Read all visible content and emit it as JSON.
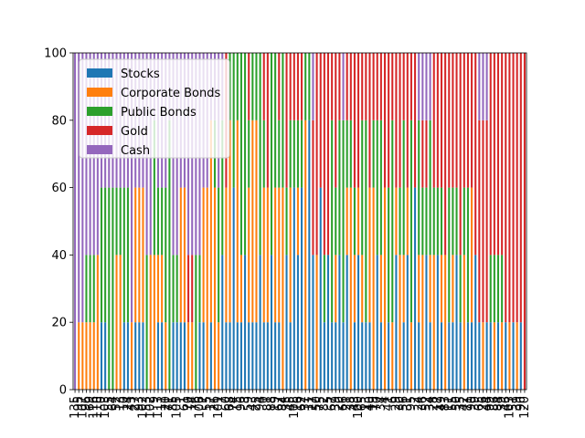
{
  "chart_data": {
    "type": "bar",
    "stacked": true,
    "title": "",
    "xlabel": "",
    "ylabel": "",
    "ylim": [
      0,
      100
    ],
    "yticks": [
      0,
      20,
      40,
      60,
      80,
      100
    ],
    "legend_position": "top-left",
    "grid": false,
    "n_categories": 120,
    "series": [
      {
        "name": "Stocks",
        "color": "#1f77b4"
      },
      {
        "name": "Corporate Bonds",
        "color": "#ff7f0e"
      },
      {
        "name": "Public Bonds",
        "color": "#2ca02c"
      },
      {
        "name": "Gold",
        "color": "#d62728"
      },
      {
        "name": "Cash",
        "color": "#9467bd"
      }
    ],
    "allocations": [
      [
        0,
        0,
        0,
        0,
        100
      ],
      [
        0,
        20,
        0,
        0,
        80
      ],
      [
        0,
        20,
        0,
        0,
        80
      ],
      [
        0,
        20,
        20,
        0,
        60
      ],
      [
        0,
        20,
        20,
        0,
        60
      ],
      [
        0,
        20,
        20,
        0,
        60
      ],
      [
        0,
        40,
        0,
        0,
        60
      ],
      [
        20,
        0,
        40,
        0,
        40
      ],
      [
        20,
        0,
        40,
        0,
        40
      ],
      [
        0,
        0,
        60,
        0,
        40
      ],
      [
        0,
        0,
        60,
        0,
        40
      ],
      [
        0,
        40,
        20,
        0,
        40
      ],
      [
        0,
        40,
        20,
        0,
        40
      ],
      [
        20,
        0,
        40,
        0,
        40
      ],
      [
        20,
        0,
        40,
        0,
        40
      ],
      [
        0,
        20,
        0,
        0,
        80
      ],
      [
        20,
        40,
        0,
        0,
        40
      ],
      [
        20,
        40,
        0,
        0,
        40
      ],
      [
        20,
        40,
        0,
        0,
        40
      ],
      [
        0,
        0,
        40,
        0,
        60
      ],
      [
        0,
        40,
        0,
        0,
        60
      ],
      [
        0,
        40,
        40,
        0,
        20
      ],
      [
        20,
        20,
        20,
        0,
        40
      ],
      [
        20,
        20,
        20,
        0,
        40
      ],
      [
        0,
        20,
        40,
        0,
        40
      ],
      [
        0,
        0,
        80,
        0,
        20
      ],
      [
        20,
        0,
        20,
        0,
        60
      ],
      [
        20,
        0,
        20,
        0,
        60
      ],
      [
        20,
        40,
        0,
        0,
        40
      ],
      [
        20,
        40,
        0,
        0,
        40
      ],
      [
        0,
        20,
        0,
        20,
        60
      ],
      [
        0,
        20,
        0,
        20,
        60
      ],
      [
        0,
        0,
        40,
        0,
        60
      ],
      [
        20,
        0,
        20,
        0,
        60
      ],
      [
        20,
        40,
        0,
        0,
        40
      ],
      [
        0,
        60,
        0,
        0,
        40
      ],
      [
        20,
        60,
        0,
        0,
        20
      ],
      [
        0,
        60,
        20,
        0,
        20
      ],
      [
        0,
        20,
        40,
        0,
        40
      ],
      [
        40,
        0,
        40,
        0,
        20
      ],
      [
        20,
        40,
        0,
        40,
        0
      ],
      [
        20,
        60,
        20,
        0,
        0
      ],
      [
        60,
        0,
        40,
        0,
        0
      ],
      [
        20,
        60,
        20,
        0,
        0
      ],
      [
        20,
        20,
        60,
        0,
        0
      ],
      [
        40,
        0,
        60,
        0,
        0
      ],
      [
        20,
        40,
        20,
        20,
        0
      ],
      [
        20,
        60,
        20,
        0,
        0
      ],
      [
        20,
        60,
        20,
        0,
        0
      ],
      [
        40,
        0,
        60,
        0,
        0
      ],
      [
        20,
        40,
        20,
        20,
        0
      ],
      [
        20,
        40,
        0,
        40,
        0
      ],
      [
        40,
        0,
        60,
        0,
        0
      ],
      [
        20,
        40,
        40,
        0,
        0
      ],
      [
        20,
        40,
        20,
        20,
        0
      ],
      [
        0,
        60,
        40,
        0,
        0
      ],
      [
        40,
        0,
        20,
        40,
        0
      ],
      [
        20,
        40,
        20,
        20,
        0
      ],
      [
        60,
        0,
        20,
        20,
        0
      ],
      [
        40,
        20,
        20,
        20,
        0
      ],
      [
        60,
        0,
        20,
        20,
        0
      ],
      [
        0,
        80,
        20,
        0,
        0
      ],
      [
        80,
        0,
        20,
        0,
        0
      ],
      [
        40,
        0,
        0,
        40,
        20
      ],
      [
        0,
        40,
        0,
        60,
        0
      ],
      [
        60,
        0,
        0,
        40,
        0
      ],
      [
        20,
        0,
        20,
        60,
        0
      ],
      [
        40,
        0,
        0,
        60,
        0
      ],
      [
        20,
        0,
        60,
        20,
        0
      ],
      [
        20,
        20,
        20,
        40,
        0
      ],
      [
        40,
        0,
        40,
        20,
        0
      ],
      [
        20,
        0,
        60,
        0,
        20
      ],
      [
        40,
        20,
        20,
        20,
        0
      ],
      [
        0,
        60,
        20,
        20,
        0
      ],
      [
        20,
        20,
        20,
        40,
        0
      ],
      [
        40,
        20,
        0,
        40,
        0
      ],
      [
        20,
        20,
        40,
        20,
        0
      ],
      [
        20,
        0,
        60,
        20,
        0
      ],
      [
        20,
        40,
        0,
        40,
        0
      ],
      [
        0,
        60,
        20,
        20,
        0
      ],
      [
        40,
        0,
        40,
        20,
        0
      ],
      [
        20,
        20,
        40,
        20,
        0
      ],
      [
        0,
        60,
        0,
        40,
        0
      ],
      [
        20,
        0,
        40,
        40,
        0
      ],
      [
        0,
        20,
        60,
        20,
        0
      ],
      [
        40,
        20,
        0,
        40,
        0
      ],
      [
        0,
        40,
        20,
        40,
        0
      ],
      [
        20,
        20,
        40,
        20,
        0
      ],
      [
        40,
        20,
        0,
        40,
        0
      ],
      [
        0,
        20,
        60,
        20,
        0
      ],
      [
        60,
        0,
        0,
        40,
        0
      ],
      [
        20,
        20,
        40,
        0,
        20
      ],
      [
        0,
        40,
        20,
        20,
        20
      ],
      [
        40,
        0,
        20,
        20,
        20
      ],
      [
        20,
        20,
        40,
        0,
        20
      ],
      [
        0,
        40,
        20,
        40,
        0
      ],
      [
        40,
        0,
        20,
        40,
        0
      ],
      [
        20,
        20,
        20,
        40,
        0
      ],
      [
        0,
        40,
        0,
        60,
        0
      ],
      [
        20,
        0,
        40,
        40,
        0
      ],
      [
        20,
        20,
        20,
        40,
        0
      ],
      [
        40,
        0,
        20,
        40,
        0
      ],
      [
        20,
        0,
        20,
        60,
        0
      ],
      [
        0,
        40,
        20,
        40,
        0
      ],
      [
        20,
        0,
        40,
        40,
        0
      ],
      [
        20,
        40,
        0,
        40,
        0
      ],
      [
        40,
        0,
        0,
        60,
        0
      ],
      [
        20,
        0,
        0,
        60,
        20
      ],
      [
        0,
        20,
        0,
        60,
        20
      ],
      [
        20,
        0,
        0,
        60,
        20
      ],
      [
        20,
        0,
        20,
        60,
        0
      ],
      [
        0,
        20,
        20,
        60,
        0
      ],
      [
        20,
        0,
        20,
        60,
        0
      ],
      [
        0,
        20,
        20,
        60,
        0
      ],
      [
        20,
        0,
        0,
        80,
        0
      ],
      [
        0,
        20,
        0,
        80,
        0
      ],
      [
        20,
        0,
        0,
        80,
        0
      ],
      [
        0,
        20,
        0,
        80,
        0
      ],
      [
        20,
        0,
        0,
        80,
        0
      ],
      [
        0,
        0,
        0,
        100,
        0
      ]
    ],
    "xtick_labels": [
      "135",
      "95",
      "107",
      "96",
      "69",
      "116",
      "110",
      "0",
      "103",
      "55",
      "64",
      "52",
      "13",
      "10",
      "24",
      "43",
      "27",
      "93",
      "102",
      "53",
      "102",
      "9",
      "113",
      "11",
      "20",
      "71",
      "85",
      "105",
      "1",
      "61",
      "70",
      "14",
      "76",
      "106",
      "7",
      "55",
      "17",
      "26",
      "101",
      "7",
      "60",
      "68",
      "74",
      "15",
      "96",
      "3",
      "59",
      "43",
      "25",
      "94",
      "0",
      "81",
      "88",
      "19",
      "67",
      "84",
      "35",
      "45",
      "108",
      "16",
      "62",
      "37",
      "11",
      "27",
      "50",
      "75",
      "82",
      "5",
      "67",
      "39",
      "20",
      "66",
      "21",
      "38",
      "43",
      "100",
      "65",
      "13",
      "40",
      "19",
      "70",
      "34",
      "4",
      "41",
      "6",
      "29",
      "30",
      "56",
      "31",
      "95",
      "2",
      "24",
      "36",
      "52",
      "34",
      "28",
      "17",
      "49",
      "83",
      "11",
      "55",
      "50",
      "35",
      "42",
      "71",
      "90",
      "39",
      "65",
      "26",
      "44",
      "99",
      "86",
      "84",
      "39",
      "46",
      "103",
      "51",
      "39",
      "90",
      "120"
    ]
  }
}
